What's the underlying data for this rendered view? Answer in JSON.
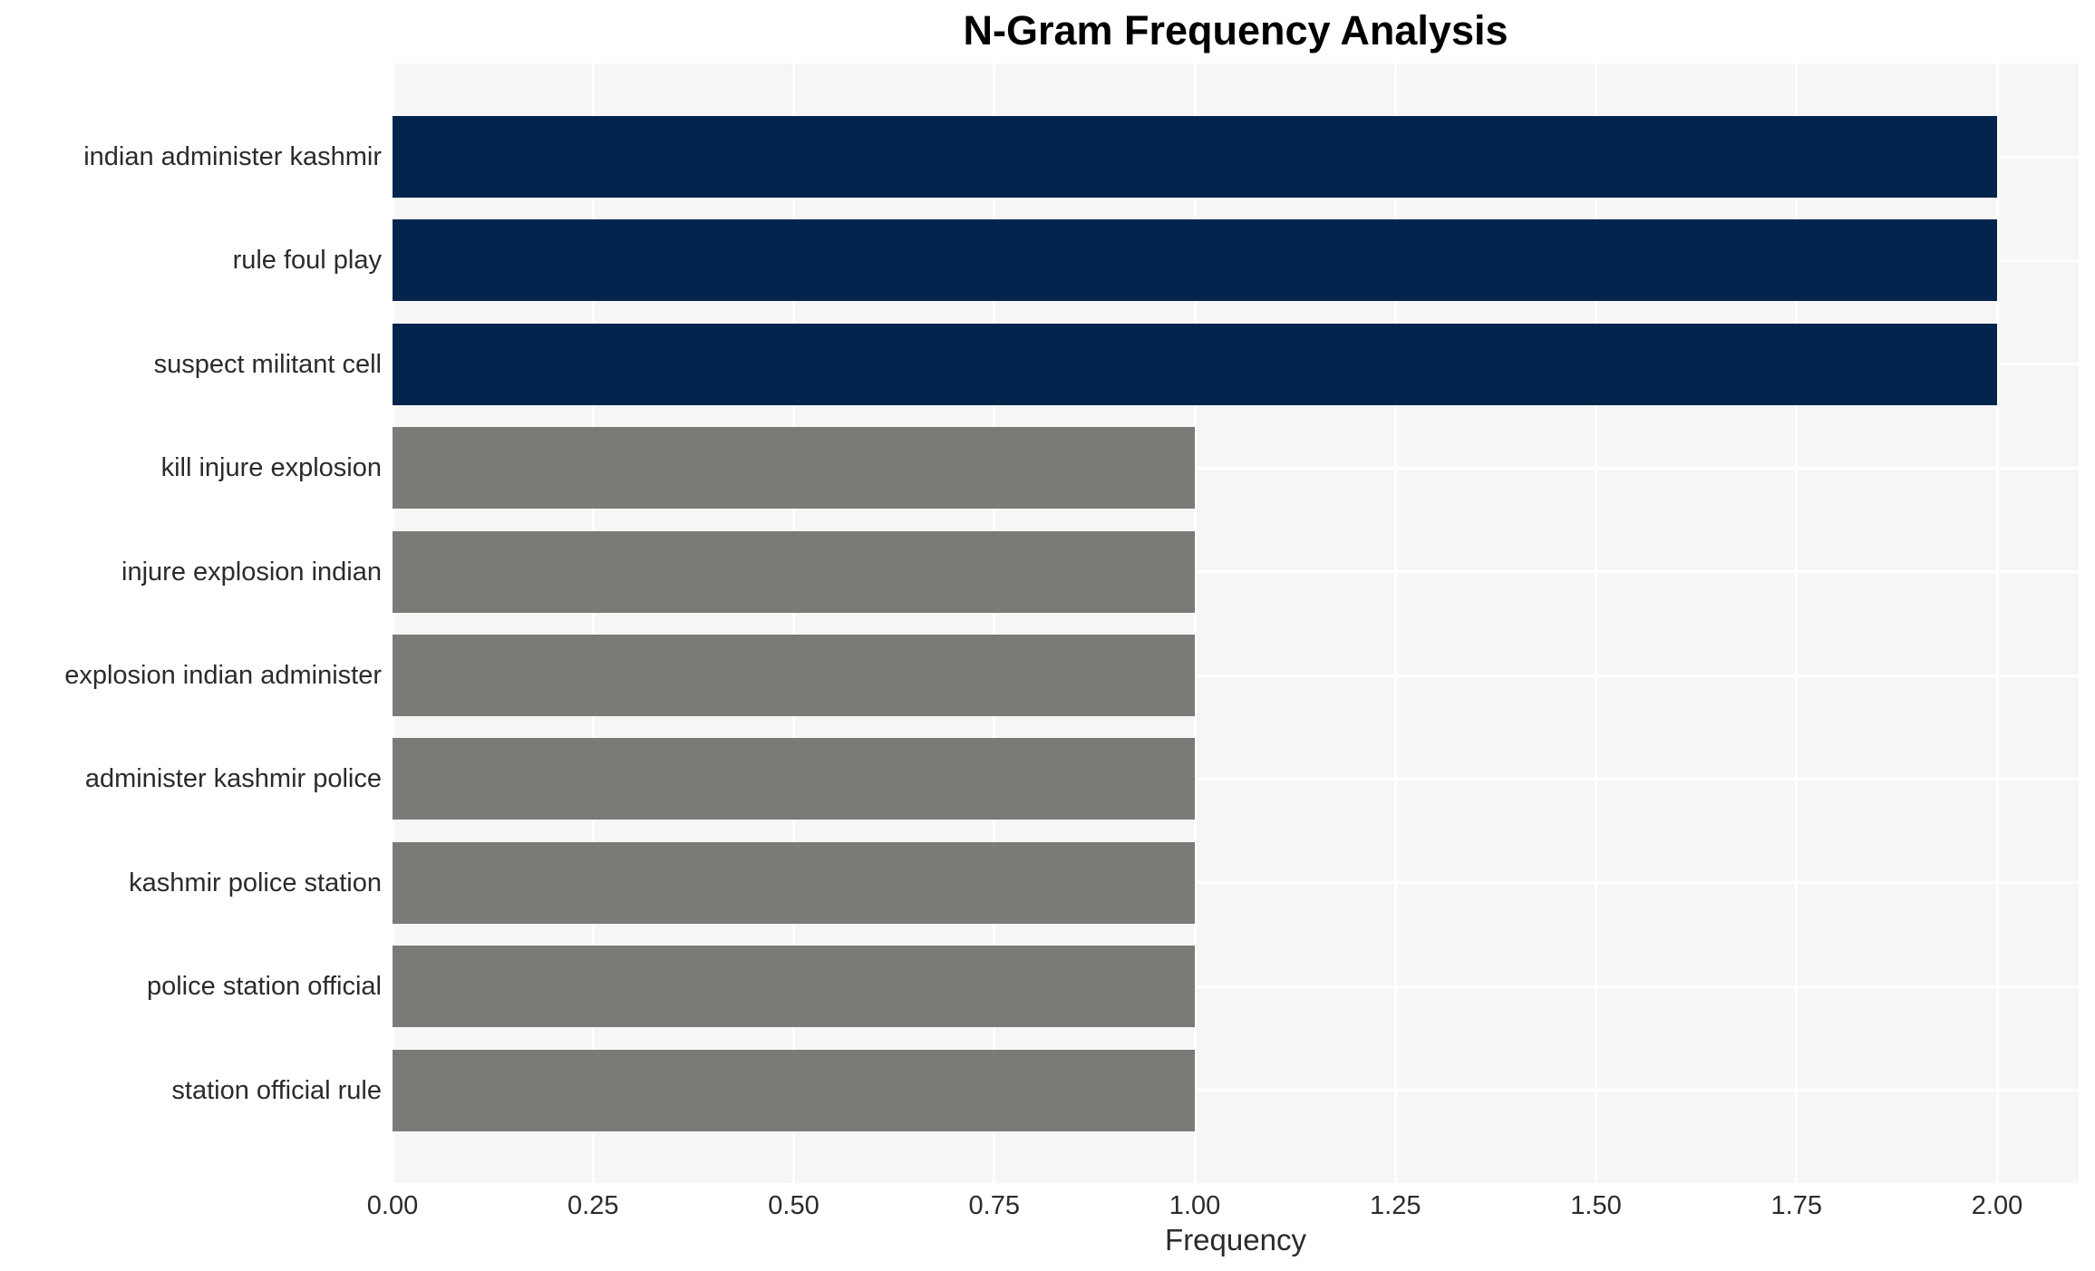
{
  "chart_data": {
    "type": "bar",
    "orientation": "horizontal",
    "title": "N-Gram Frequency Analysis",
    "xlabel": "Frequency",
    "ylabel": "",
    "categories": [
      "indian administer kashmir",
      "rule foul play",
      "suspect militant cell",
      "kill injure explosion",
      "injure explosion indian",
      "explosion indian administer",
      "administer kashmir police",
      "kashmir police station",
      "police station official",
      "station official rule"
    ],
    "values": [
      2,
      2,
      2,
      1,
      1,
      1,
      1,
      1,
      1,
      1
    ],
    "bar_colors": [
      "#02244d",
      "#02244d",
      "#02244d",
      "#7b7a77",
      "#7b7a77",
      "#7b7a77",
      "#7b7a77",
      "#7b7a77",
      "#7b7a77",
      "#7b7a77"
    ],
    "x_ticks": [
      "0.00",
      "0.25",
      "0.50",
      "0.75",
      "1.00",
      "1.25",
      "1.50",
      "1.75",
      "2.00"
    ],
    "xlim": [
      0.0,
      2.1
    ],
    "grid": "on",
    "legend": "none",
    "colors": {
      "high_frequency_bar": "#02244d",
      "low_frequency_bar": "#7b7a77",
      "plot_background": "#f6f6f7",
      "gridline": "#ffffff",
      "title_text": "#000000",
      "axis_text": "#2b2b2b"
    }
  }
}
